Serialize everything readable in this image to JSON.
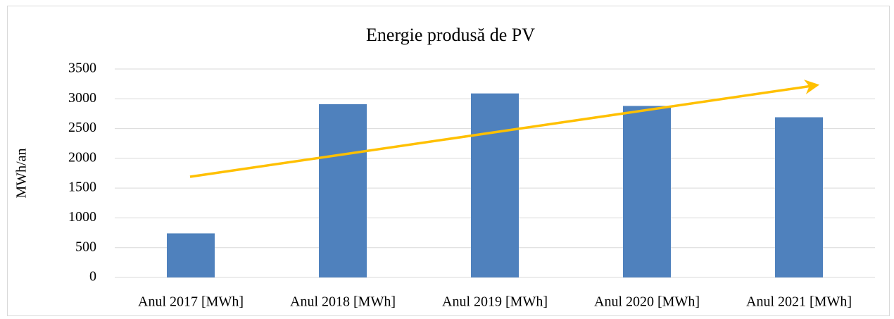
{
  "chart_data": {
    "type": "bar",
    "title": "Energie produsă de PV",
    "y_label": "MWh/an",
    "categories": [
      "Anul 2017 [MWh]",
      "Anul 2018 [MWh]",
      "Anul 2019 [MWh]",
      "Anul 2020 [MWh]",
      "Anul 2021 [MWh]"
    ],
    "values": [
      740,
      2910,
      3090,
      2880,
      2690
    ],
    "color": "#4f81bd",
    "ylim": [
      0,
      3500
    ],
    "yticks": [
      0,
      500,
      1000,
      1500,
      2000,
      2500,
      3000,
      3500
    ],
    "grid": true
  }
}
